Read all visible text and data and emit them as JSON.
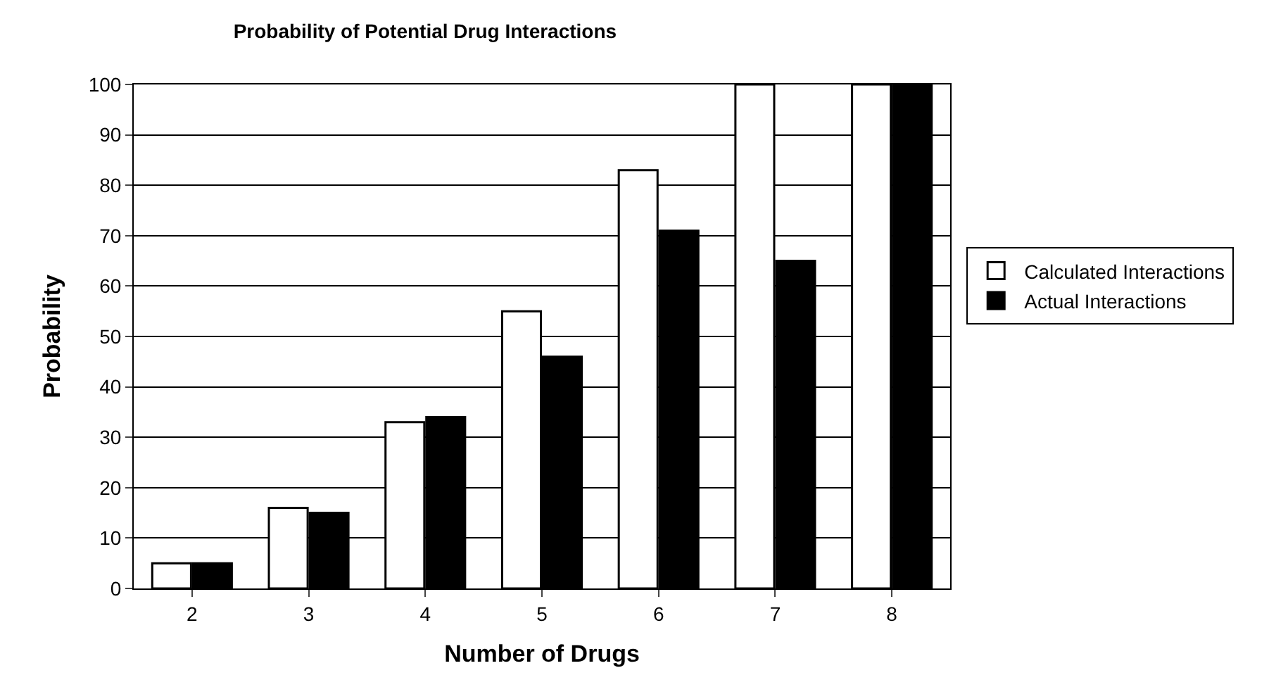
{
  "chart_data": {
    "type": "bar",
    "title": "Probability of Potential Drug Interactions",
    "xlabel": "Number of Drugs",
    "ylabel": "Probability",
    "categories": [
      "2",
      "3",
      "4",
      "5",
      "6",
      "7",
      "8"
    ],
    "series": [
      {
        "name": "Calculated Interactions",
        "color": "#ffffff",
        "values": [
          5,
          16,
          33,
          55,
          83,
          100,
          100
        ]
      },
      {
        "name": "Actual Interactions",
        "color": "#000000",
        "values": [
          5,
          15,
          34,
          46,
          71,
          65,
          100
        ]
      }
    ],
    "ylim": [
      0,
      100
    ],
    "yticks": [
      0,
      10,
      20,
      30,
      40,
      50,
      60,
      70,
      80,
      90,
      100
    ],
    "grid": "y",
    "legend": "right"
  }
}
